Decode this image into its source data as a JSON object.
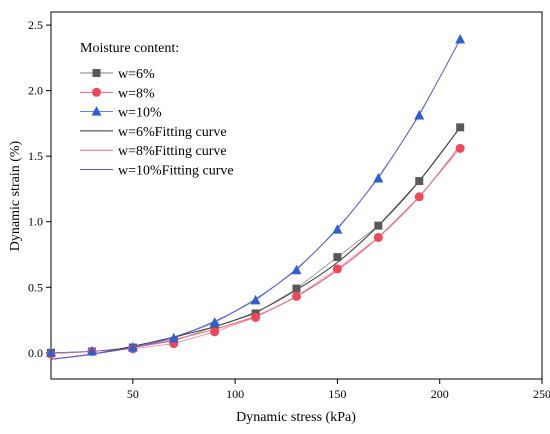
{
  "chart_data": {
    "type": "scatter",
    "xlabel": "Dynamic stress (kPa)",
    "ylabel": "Dynamic strain (%)",
    "xlim": [
      10,
      250
    ],
    "ylim": [
      -0.2,
      2.6
    ],
    "xticks": [
      50,
      100,
      150,
      200,
      250
    ],
    "yticks": [
      0.0,
      0.5,
      1.0,
      1.5,
      2.0,
      2.5
    ],
    "grid": false,
    "legend": {
      "title": "Moisture content:",
      "placement": "top-left"
    },
    "series": [
      {
        "name": "w=6%",
        "kind": "points",
        "marker": "square",
        "color": "#595959",
        "x": [
          10,
          30,
          50,
          70,
          90,
          110,
          130,
          150,
          170,
          190,
          210
        ],
        "y": [
          0.0,
          0.01,
          0.04,
          0.09,
          0.2,
          0.3,
          0.49,
          0.73,
          0.97,
          1.31,
          1.72
        ]
      },
      {
        "name": "w=8%",
        "kind": "points",
        "marker": "circle",
        "color": "#f0485a",
        "x": [
          10,
          30,
          50,
          70,
          90,
          110,
          130,
          150,
          170,
          190,
          210
        ],
        "y": [
          -0.01,
          0.01,
          0.03,
          0.07,
          0.16,
          0.27,
          0.43,
          0.64,
          0.88,
          1.19,
          1.56
        ]
      },
      {
        "name": "w=10%",
        "kind": "points",
        "marker": "triangle",
        "color": "#2e5fd0",
        "x": [
          10,
          30,
          50,
          70,
          90,
          110,
          130,
          150,
          170,
          190,
          210
        ],
        "y": [
          0.0,
          0.01,
          0.04,
          0.11,
          0.23,
          0.4,
          0.63,
          0.94,
          1.33,
          1.81,
          2.39
        ]
      },
      {
        "name": "w=6%Fitting curve",
        "kind": "line",
        "color": "#333333",
        "x": [
          10,
          30,
          50,
          70,
          90,
          110,
          130,
          150,
          170,
          190,
          210
        ],
        "y": [
          -0.05,
          -0.01,
          0.05,
          0.12,
          0.2,
          0.31,
          0.48,
          0.69,
          0.97,
          1.31,
          1.72
        ]
      },
      {
        "name": "w=8%Fitting curve",
        "kind": "line",
        "color": "#e8607a",
        "x": [
          10,
          30,
          50,
          70,
          90,
          110,
          130,
          150,
          170,
          190,
          210
        ],
        "y": [
          -0.05,
          -0.01,
          0.04,
          0.1,
          0.18,
          0.28,
          0.43,
          0.63,
          0.88,
          1.19,
          1.58
        ]
      },
      {
        "name": "w=10%Fitting curve",
        "kind": "line",
        "color": "#5b5bd6",
        "x": [
          10,
          30,
          50,
          70,
          90,
          110,
          130,
          150,
          170,
          190,
          210
        ],
        "y": [
          -0.05,
          -0.01,
          0.04,
          0.12,
          0.24,
          0.41,
          0.64,
          0.95,
          1.34,
          1.82,
          2.39
        ]
      }
    ]
  }
}
